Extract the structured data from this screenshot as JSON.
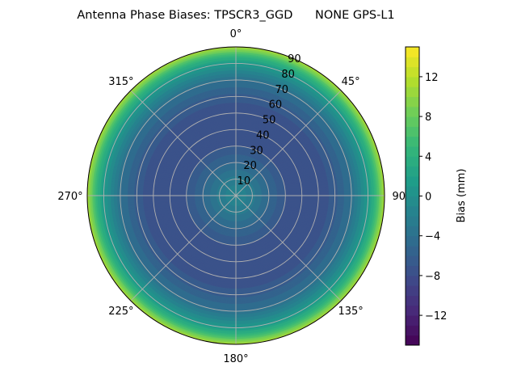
{
  "chart_data": {
    "type": "heatmap",
    "subtype": "polar-filled-contour",
    "title": "Antenna Phase Biases: TPSCR3_GGD      NONE GPS-L1",
    "angular_tick_labels": [
      "0°",
      "45°",
      "90°",
      "135°",
      "180°",
      "225°",
      "270°",
      "315°"
    ],
    "radial_tick_labels": [
      "10",
      "20",
      "30",
      "40",
      "50",
      "60",
      "70",
      "80",
      "90"
    ],
    "radial_range": [
      0,
      90
    ],
    "grid": true,
    "colormap": "viridis",
    "colorbar": {
      "label": "Bias (mm)",
      "range": [
        -15,
        15
      ],
      "ticks": [
        -12,
        -8,
        -4,
        0,
        4,
        8,
        12
      ],
      "tick_labels": [
        "−12",
        "−8",
        "−4",
        "0",
        "4",
        "8",
        "12"
      ],
      "level_step": 1,
      "placement": "right"
    },
    "radial_profile": {
      "zenith_deg": [
        0,
        10,
        20,
        30,
        40,
        50,
        60,
        70,
        80,
        85,
        90
      ],
      "bias_mm": [
        -1,
        -2.5,
        -5,
        -7,
        -8,
        -8,
        -6.5,
        -4,
        1,
        5,
        11
      ]
    }
  }
}
